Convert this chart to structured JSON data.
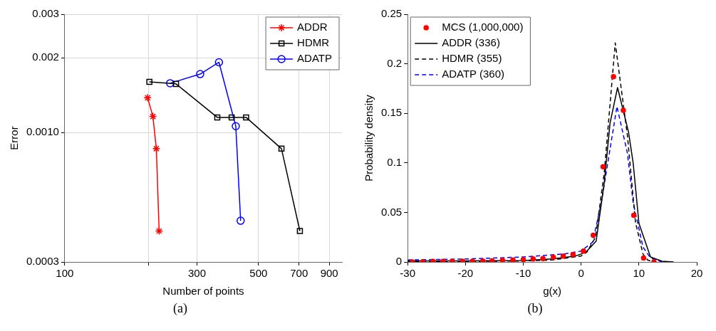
{
  "chart_data": [
    {
      "type": "line",
      "xlabel": "Number of points",
      "ylabel": "Error",
      "log": "xy",
      "grid": true,
      "legend": "top right",
      "xlim": [
        100,
        1000
      ],
      "xticks": [
        100,
        {
          "value": 200,
          "label": null
        },
        300,
        500,
        700,
        900
      ],
      "ylim": [
        0.0003,
        0.003
      ],
      "yticks": [
        0.0003,
        {
          "value": 0.001,
          "label": "0.0010"
        },
        0.002,
        0.003
      ],
      "annotations": [
        "(a)"
      ],
      "series": [
        {
          "name": "ADDR",
          "color": "#ff0000",
          "marker": "cross",
          "x": [
            199,
            208,
            214,
            219
          ],
          "values": [
            0.00138,
            0.00116,
            0.00086,
            0.0004
          ]
        },
        {
          "name": "HDMR",
          "color": "#000000",
          "marker": "square",
          "x": [
            202,
            252,
            355,
            400,
            451,
            605,
            705
          ],
          "values": [
            0.0016,
            0.00157,
            0.00115,
            0.00115,
            0.00115,
            0.00086,
            0.0004
          ]
        },
        {
          "name": "ADATP",
          "color": "#0000ff",
          "marker": "circle",
          "x": [
            240,
            308,
            360,
            414,
            431
          ],
          "values": [
            0.00158,
            0.00172,
            0.00192,
            0.00106,
            0.00044
          ]
        }
      ]
    },
    {
      "type": "line",
      "xlabel": "g(x)",
      "ylabel": "Probability density",
      "grid": false,
      "legend": "top left",
      "xlim": [
        -30,
        20
      ],
      "xticks": [
        -30,
        -20,
        -10,
        0,
        10,
        20
      ],
      "ylim": [
        0,
        0.25
      ],
      "yticks": [
        0,
        0.05,
        0.1,
        0.15,
        0.2,
        0.25
      ],
      "annotations": [
        "(b)"
      ],
      "series": [
        {
          "name": "MCS (1,000,000)",
          "type": "scatter",
          "color": "#ff0000",
          "marker": "circle",
          "x": [
            -29.2,
            -27.4,
            -25.6,
            -23.9,
            -22.3,
            -20.5,
            -18.8,
            -17.0,
            -15.4,
            -13.6,
            -11.8,
            -10.0,
            -8.3,
            -6.6,
            -4.8,
            -3.1,
            -1.4,
            0.4,
            2.1,
            3.8,
            5.6,
            7.3,
            9.1,
            10.8,
            12.6
          ],
          "values": [
            0,
            0,
            0.0005,
            0.0005,
            0.0005,
            0.0007,
            0.0007,
            0.0009,
            0.001,
            0.0016,
            0.002,
            0.0023,
            0.003,
            0.0034,
            0.0046,
            0.006,
            0.0076,
            0.011,
            0.027,
            0.096,
            0.187,
            0.153,
            0.047,
            0.004,
            0
          ]
        },
        {
          "name": "ADDR (336)",
          "color": "#000000",
          "marker": "none",
          "line_style": "solid",
          "x": [
            -30,
            -20,
            -10,
            -5,
            -1,
            0,
            1,
            2.6,
            4,
            5,
            6.3,
            8.2,
            9,
            10,
            12,
            14,
            16
          ],
          "values": [
            0.001,
            0.001,
            0.0015,
            0.003,
            0.006,
            0.008,
            0.011,
            0.021,
            0.08,
            0.14,
            0.176,
            0.131,
            0.1,
            0.039,
            0.005,
            0.0007,
            0
          ]
        },
        {
          "name": "HDMR (355)",
          "color": "#000000",
          "marker": "none",
          "line_style": "dashed",
          "x": [
            -30,
            -20,
            -10,
            -5,
            0,
            1,
            2.5,
            4,
            5.9,
            8,
            9.4,
            10.7,
            11.5,
            12.5
          ],
          "values": [
            0.0005,
            0.0005,
            0.001,
            0.002,
            0.006,
            0.01,
            0.025,
            0.09,
            0.221,
            0.128,
            0.04,
            0.008,
            0.002,
            0
          ]
        },
        {
          "name": "ADATP (360)",
          "color": "#0000ff",
          "marker": "none",
          "line_style": "dashed",
          "x": [
            -30,
            -20,
            -10,
            -3,
            0,
            2,
            3.5,
            6.2,
            8,
            9,
            10.7,
            12,
            14
          ],
          "values": [
            0.002,
            0.003,
            0.005,
            0.008,
            0.011,
            0.02,
            0.06,
            0.157,
            0.11,
            0.06,
            0.015,
            0.004,
            0
          ]
        }
      ]
    }
  ]
}
